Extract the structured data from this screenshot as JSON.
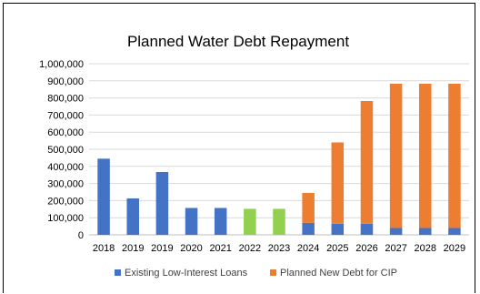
{
  "chart_data": {
    "type": "bar",
    "title": "Planned Water Debt Repayment",
    "xlabel": "",
    "ylabel": "",
    "ylim": [
      0,
      1000000
    ],
    "y_ticks": [
      "0",
      "100,000",
      "200,000",
      "300,000",
      "400,000",
      "500,000",
      "600,000",
      "700,000",
      "800,000",
      "900,000",
      "1,000,000"
    ],
    "grid": true,
    "stacked": true,
    "legend_position": "bottom",
    "categories": [
      "2018",
      "2019",
      "2019",
      "2020",
      "2021",
      "2022",
      "2023",
      "2024",
      "2025",
      "2026",
      "2027",
      "2028",
      "2029"
    ],
    "series": [
      {
        "name": "Existing Low-Interest Loans",
        "color": "#4472C4",
        "values": [
          445000,
          213000,
          367000,
          157000,
          157000,
          0,
          0,
          70000,
          65000,
          65000,
          40000,
          40000,
          40000
        ]
      },
      {
        "name": "Planned New Debt for CIP",
        "color": "#ED7D31",
        "values": [
          0,
          0,
          0,
          0,
          0,
          0,
          0,
          175000,
          475000,
          717000,
          843000,
          843000,
          843000
        ]
      }
    ],
    "highlight_bars": {
      "color": "#92D050",
      "values": [
        0,
        0,
        0,
        0,
        0,
        152000,
        152000,
        0,
        0,
        0,
        0,
        0,
        0
      ]
    }
  }
}
